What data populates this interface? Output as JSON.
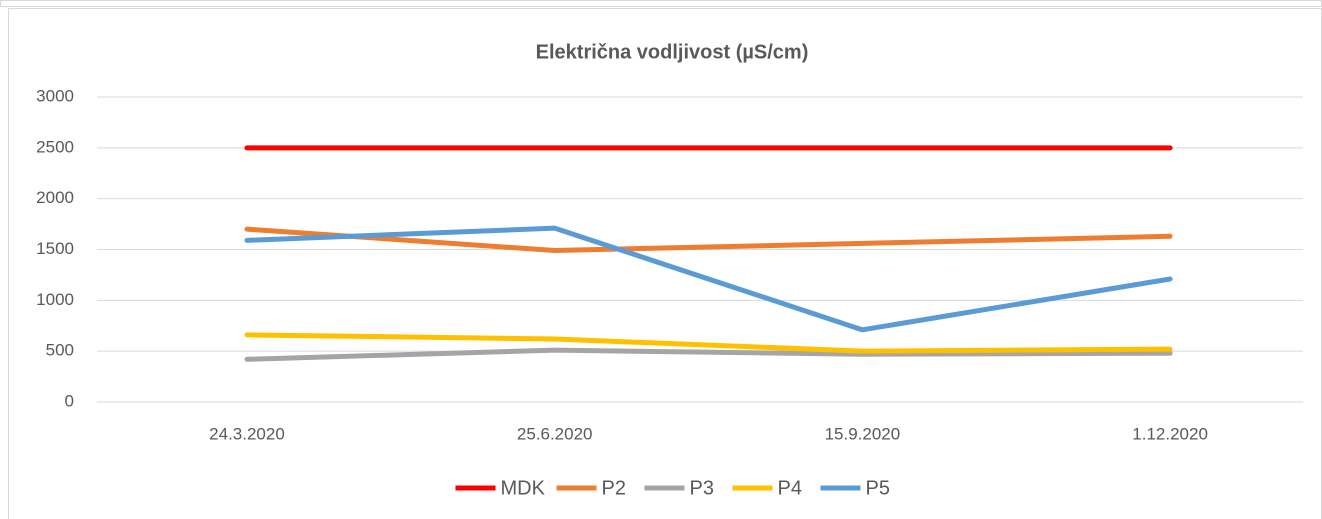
{
  "chart_data": {
    "type": "line",
    "title": "Električna vodljivost (µS/cm)",
    "categories": [
      "24.3.2020",
      "25.6.2020",
      "15.9.2020",
      "1.12.2020"
    ],
    "series": [
      {
        "name": "MDK",
        "color": "#ff0000",
        "values": [
          2500,
          2500,
          2500,
          2500
        ]
      },
      {
        "name": "P2",
        "color": "#ed7d31",
        "values": [
          1700,
          1490,
          1560,
          1630
        ]
      },
      {
        "name": "P3",
        "color": "#a5a5a5",
        "values": [
          420,
          510,
          470,
          480
        ]
      },
      {
        "name": "P4",
        "color": "#ffc000",
        "values": [
          660,
          620,
          500,
          520
        ]
      },
      {
        "name": "P5",
        "color": "#5b9bd5",
        "values": [
          1590,
          1710,
          710,
          1210
        ]
      }
    ],
    "ylim": [
      0,
      3000
    ],
    "yticks": [
      0,
      500,
      1000,
      1500,
      2000,
      2500,
      3000
    ],
    "grid": true,
    "legend": "bottom"
  }
}
